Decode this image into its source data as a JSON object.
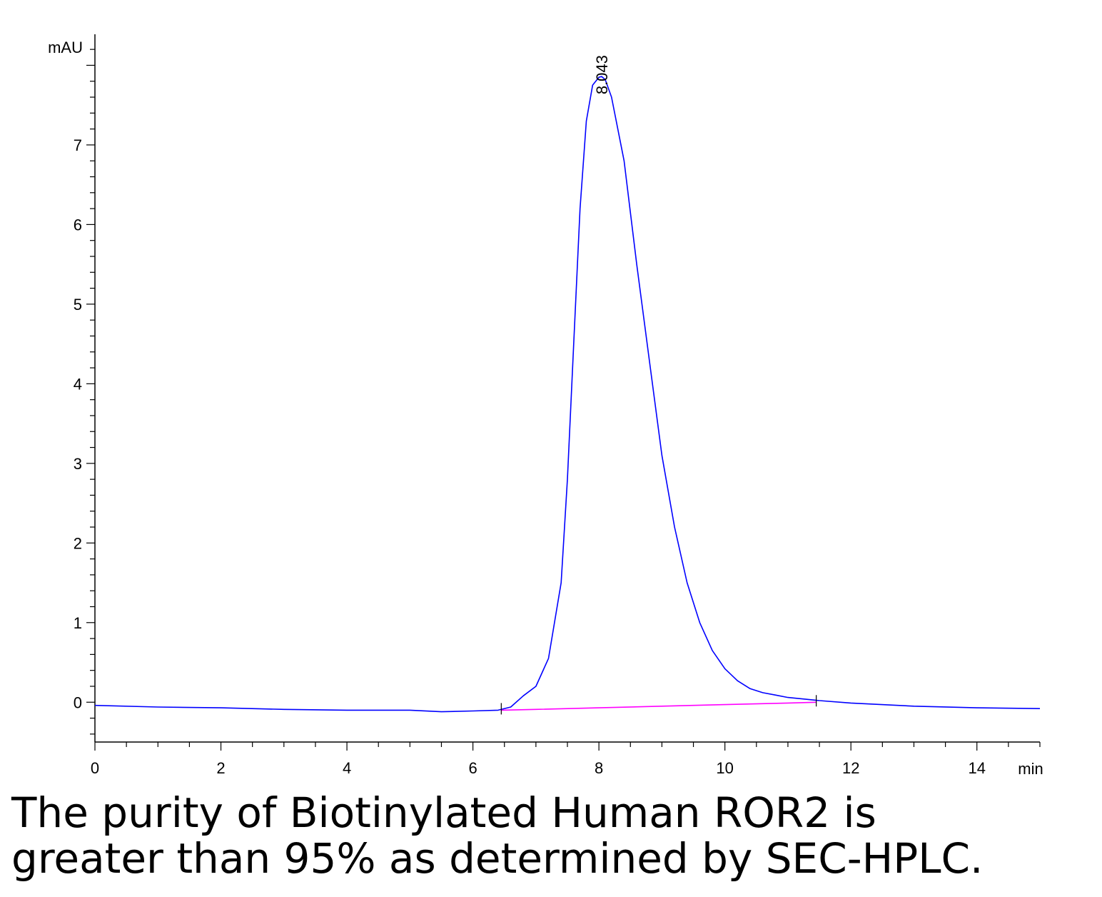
{
  "chart_data": {
    "type": "line",
    "title": "",
    "xlabel": "min",
    "ylabel": "mAU",
    "xlim": [
      0,
      15
    ],
    "ylim": [
      -0.5,
      8.3
    ],
    "x_ticks": [
      0,
      2,
      4,
      6,
      8,
      10,
      12,
      14
    ],
    "y_ticks": [
      0,
      1,
      2,
      3,
      4,
      5,
      6,
      7
    ],
    "grid": false,
    "legend": "none",
    "peak_labels": [
      {
        "x": 8.043,
        "y": 7.85,
        "text": "8.043"
      }
    ],
    "series": [
      {
        "color": "#0000ff",
        "x": [
          0,
          1,
          2,
          3,
          4,
          5,
          5.5,
          6,
          6.4,
          6.6,
          6.8,
          7.0,
          7.2,
          7.4,
          7.5,
          7.6,
          7.7,
          7.8,
          7.9,
          8.0,
          8.043,
          8.1,
          8.2,
          8.4,
          8.6,
          8.8,
          9.0,
          9.2,
          9.4,
          9.6,
          9.8,
          10.0,
          10.2,
          10.4,
          10.6,
          10.8,
          11.0,
          11.5,
          12,
          13,
          14,
          15
        ],
        "y": [
          -0.04,
          -0.06,
          -0.07,
          -0.09,
          -0.1,
          -0.1,
          -0.12,
          -0.11,
          -0.1,
          -0.06,
          0.08,
          0.2,
          0.55,
          1.5,
          2.8,
          4.5,
          6.2,
          7.3,
          7.75,
          7.85,
          7.86,
          7.82,
          7.6,
          6.8,
          5.5,
          4.3,
          3.1,
          2.2,
          1.5,
          1.0,
          0.65,
          0.42,
          0.27,
          0.17,
          0.12,
          0.09,
          0.06,
          0.02,
          -0.01,
          -0.05,
          -0.07,
          -0.08
        ]
      },
      {
        "color": "#ff00ff",
        "x": [
          6.45,
          7,
          8,
          9,
          10,
          11,
          11.45
        ],
        "y": [
          -0.1,
          -0.09,
          -0.07,
          -0.05,
          -0.03,
          -0.01,
          0.0
        ]
      }
    ]
  },
  "caption": {
    "line1": "The purity of Biotinylated Human ROR2 is",
    "line2": "greater than 95% as determined by SEC-HPLC."
  }
}
